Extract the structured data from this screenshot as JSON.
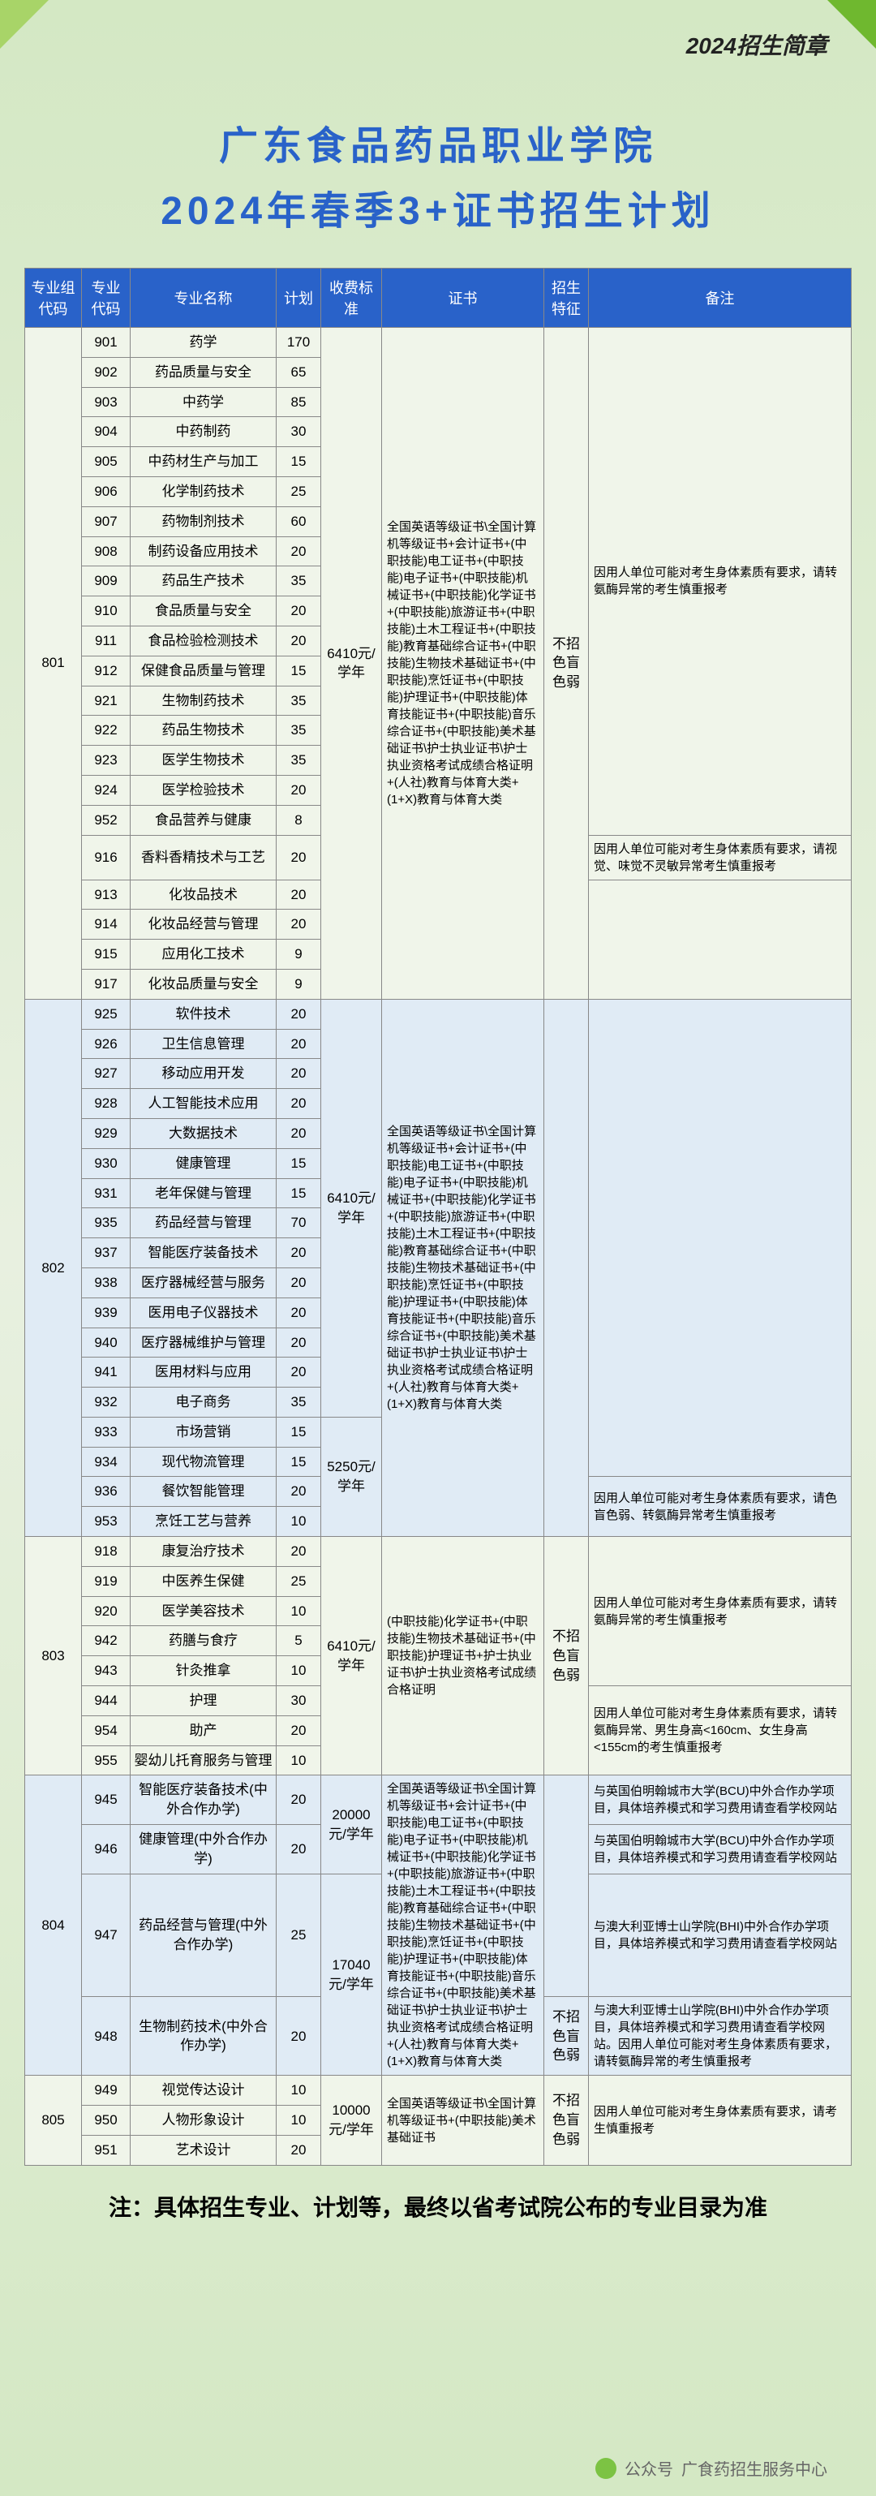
{
  "header_sub": "2024招生简章",
  "title": "广东食品药品职业学院",
  "subtitle": "2024年春季3+证书招生计划",
  "columns": [
    "专业组代码",
    "专业代码",
    "专业名称",
    "计划",
    "收费标准",
    "证书",
    "招生特征",
    "备注"
  ],
  "fee_std_a": "6410元/学年",
  "fee_std_b": "5250元/学年",
  "fee_std_c": "6410元/学年",
  "fee_std_d1": "20000元/学年",
  "fee_std_d2": "17040元/学年",
  "fee_std_e": "10000元/学年",
  "feature_text": "不招色盲色弱",
  "cert_801": "全国英语等级证书\\全国计算机等级证书+会计证书+(中职技能)电工证书+(中职技能)电子证书+(中职技能)机械证书+(中职技能)化学证书+(中职技能)旅游证书+(中职技能)土木工程证书+(中职技能)教育基础综合证书+(中职技能)生物技术基础证书+(中职技能)烹饪证书+(中职技能)护理证书+(中职技能)体育技能证书+(中职技能)音乐综合证书+(中职技能)美术基础证书\\护士执业证书\\护士执业资格考试成绩合格证明+(人社)教育与体育大类+(1+X)教育与体育大类",
  "cert_803": "(中职技能)化学证书+(中职技能)生物技术基础证书+(中职技能)护理证书+护士执业证书\\护士执业资格考试成绩合格证明",
  "cert_805": "全国英语等级证书\\全国计算机等级证书+(中职技能)美术基础证书",
  "note_body": "因用人单位可能对考生身体素质有要求，请转氨酶异常的考生慎重报考",
  "note_916": "因用人单位可能对考生身体素质有要求，请视觉、味觉不灵敏异常考生慎重报考",
  "note_936": "因用人单位可能对考生身体素质有要求，请色盲色弱、转氨酶异常考生慎重报考",
  "note_803a": "因用人单位可能对考生身体素质有要求，请转氨酶异常的考生慎重报考",
  "note_803b": "因用人单位可能对考生身体素质有要求，请转氨酶异常、男生身高<160cm、女生身高<155cm的考生慎重报考",
  "note_945": "与英国伯明翰城市大学(BCU)中外合作办学项目，具体培养模式和学习费用请查看学校网站",
  "note_946": "与英国伯明翰城市大学(BCU)中外合作办学项目，具体培养模式和学习费用请查看学校网站",
  "note_947": "与澳大利亚博士山学院(BHI)中外合作办学项目，具体培养模式和学习费用请查看学校网站",
  "note_948": "与澳大利亚博士山学院(BHI)中外合作办学项目，具体培养模式和学习费用请查看学校网站。因用人单位可能对考生身体素质有要求，请转氨酶异常的考生慎重报考",
  "note_805": "因用人单位可能对考生身体素质有要求，请考生慎重报考",
  "g801": [
    {
      "code": "901",
      "name": "药学",
      "count": "170"
    },
    {
      "code": "902",
      "name": "药品质量与安全",
      "count": "65"
    },
    {
      "code": "903",
      "name": "中药学",
      "count": "85"
    },
    {
      "code": "904",
      "name": "中药制药",
      "count": "30"
    },
    {
      "code": "905",
      "name": "中药材生产与加工",
      "count": "15"
    },
    {
      "code": "906",
      "name": "化学制药技术",
      "count": "25"
    },
    {
      "code": "907",
      "name": "药物制剂技术",
      "count": "60"
    },
    {
      "code": "908",
      "name": "制药设备应用技术",
      "count": "20"
    },
    {
      "code": "909",
      "name": "药品生产技术",
      "count": "35"
    },
    {
      "code": "910",
      "name": "食品质量与安全",
      "count": "20"
    },
    {
      "code": "911",
      "name": "食品检验检测技术",
      "count": "20"
    },
    {
      "code": "912",
      "name": "保健食品质量与管理",
      "count": "15"
    },
    {
      "code": "921",
      "name": "生物制药技术",
      "count": "35"
    },
    {
      "code": "922",
      "name": "药品生物技术",
      "count": "35"
    },
    {
      "code": "923",
      "name": "医学生物技术",
      "count": "35"
    },
    {
      "code": "924",
      "name": "医学检验技术",
      "count": "20"
    },
    {
      "code": "952",
      "name": "食品营养与健康",
      "count": "8"
    },
    {
      "code": "916",
      "name": "香料香精技术与工艺",
      "count": "20"
    },
    {
      "code": "913",
      "name": "化妆品技术",
      "count": "20"
    },
    {
      "code": "914",
      "name": "化妆品经营与管理",
      "count": "20"
    },
    {
      "code": "915",
      "name": "应用化工技术",
      "count": "9"
    },
    {
      "code": "917",
      "name": "化妆品质量与安全",
      "count": "9"
    }
  ],
  "g802": [
    {
      "code": "925",
      "name": "软件技术",
      "count": "20"
    },
    {
      "code": "926",
      "name": "卫生信息管理",
      "count": "20"
    },
    {
      "code": "927",
      "name": "移动应用开发",
      "count": "20"
    },
    {
      "code": "928",
      "name": "人工智能技术应用",
      "count": "20"
    },
    {
      "code": "929",
      "name": "大数据技术",
      "count": "20"
    },
    {
      "code": "930",
      "name": "健康管理",
      "count": "15"
    },
    {
      "code": "931",
      "name": "老年保健与管理",
      "count": "15"
    },
    {
      "code": "935",
      "name": "药品经营与管理",
      "count": "70"
    },
    {
      "code": "937",
      "name": "智能医疗装备技术",
      "count": "20"
    },
    {
      "code": "938",
      "name": "医疗器械经营与服务",
      "count": "20"
    },
    {
      "code": "939",
      "name": "医用电子仪器技术",
      "count": "20"
    },
    {
      "code": "940",
      "name": "医疗器械维护与管理",
      "count": "20"
    },
    {
      "code": "941",
      "name": "医用材料与应用",
      "count": "20"
    },
    {
      "code": "932",
      "name": "电子商务",
      "count": "35"
    },
    {
      "code": "933",
      "name": "市场营销",
      "count": "15"
    },
    {
      "code": "934",
      "name": "现代物流管理",
      "count": "15"
    },
    {
      "code": "936",
      "name": "餐饮智能管理",
      "count": "20"
    },
    {
      "code": "953",
      "name": "烹饪工艺与营养",
      "count": "10"
    }
  ],
  "g803": [
    {
      "code": "918",
      "name": "康复治疗技术",
      "count": "20"
    },
    {
      "code": "919",
      "name": "中医养生保健",
      "count": "25"
    },
    {
      "code": "920",
      "name": "医学美容技术",
      "count": "10"
    },
    {
      "code": "942",
      "name": "药膳与食疗",
      "count": "5"
    },
    {
      "code": "943",
      "name": "针灸推拿",
      "count": "10"
    },
    {
      "code": "944",
      "name": "护理",
      "count": "30"
    },
    {
      "code": "954",
      "name": "助产",
      "count": "20"
    },
    {
      "code": "955",
      "name": "婴幼儿托育服务与管理",
      "count": "10"
    }
  ],
  "g804": [
    {
      "code": "945",
      "name": "智能医疗装备技术(中外合作办学)",
      "count": "20"
    },
    {
      "code": "946",
      "name": "健康管理(中外合作办学)",
      "count": "20"
    },
    {
      "code": "947",
      "name": "药品经营与管理(中外合作办学)",
      "count": "25"
    },
    {
      "code": "948",
      "name": "生物制药技术(中外合作办学)",
      "count": "20"
    }
  ],
  "g805": [
    {
      "code": "949",
      "name": "视觉传达设计",
      "count": "10"
    },
    {
      "code": "950",
      "name": "人物形象设计",
      "count": "10"
    },
    {
      "code": "951",
      "name": "艺术设计",
      "count": "20"
    }
  ],
  "footnote": "注：具体招生专业、计划等，最终以省考试院公布的专业目录为准",
  "footer_label": "公众号",
  "footer_name": "广食药招生服务中心"
}
